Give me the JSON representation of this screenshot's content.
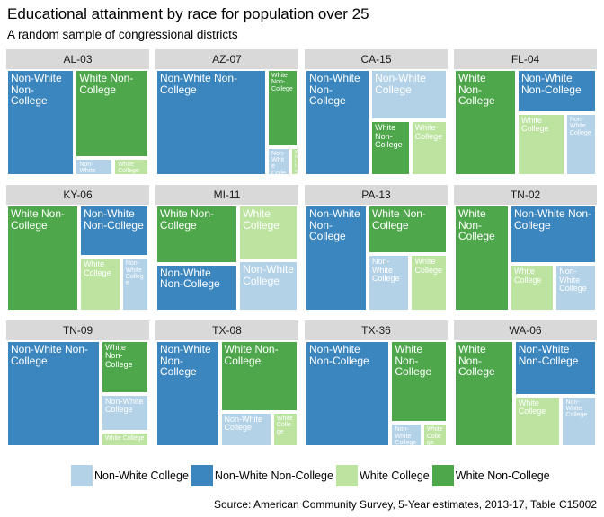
{
  "chart_data": {
    "type": "treemap",
    "title": "Educational attainment by race for population over 25",
    "subtitle": "A random sample of congressional districts",
    "caption": "Source: American Community Survey, 5-Year estimates, 2013-17, Table C15002",
    "categories": [
      "Non-White College",
      "Non-White Non-College",
      "White College",
      "White Non-College"
    ],
    "colors": {
      "Non-White College": "#b3d2e8",
      "Non-White Non-College": "#3c86c0",
      "White College": "#bde3a0",
      "White Non-College": "#4ea84b"
    },
    "legend_position": "bottom",
    "districts": [
      {
        "name": "AL-03",
        "values": {
          "Non-White College": 0.045,
          "Non-White Non-College": 0.48,
          "White College": 0.042,
          "White Non-College": 0.433
        }
      },
      {
        "name": "AZ-07",
        "values": {
          "Non-White College": 0.045,
          "Non-White Non-College": 0.78,
          "White College": 0.015,
          "White Non-College": 0.16
        }
      },
      {
        "name": "CA-15",
        "values": {
          "Non-White College": 0.26,
          "Non-White Non-College": 0.46,
          "White College": 0.135,
          "White Non-College": 0.145
        }
      },
      {
        "name": "FL-04",
        "values": {
          "Non-White College": 0.13,
          "Non-White Non-College": 0.23,
          "White College": 0.2,
          "White Non-College": 0.44
        }
      },
      {
        "name": "KY-06",
        "values": {
          "Non-White College": 0.1,
          "Non-White Non-College": 0.24,
          "White College": 0.15,
          "White Non-College": 0.51
        }
      },
      {
        "name": "MI-11",
        "values": {
          "Non-White College": 0.2,
          "Non-White Non-College": 0.26,
          "White College": 0.22,
          "White Non-College": 0.32
        }
      },
      {
        "name": "PA-13",
        "values": {
          "Non-White College": 0.16,
          "Non-White Non-College": 0.44,
          "White College": 0.14,
          "White Non-College": 0.26
        }
      },
      {
        "name": "TN-02",
        "values": {
          "Non-White College": 0.13,
          "Non-White Non-College": 0.34,
          "White College": 0.14,
          "White Non-College": 0.39
        }
      },
      {
        "name": "TN-09",
        "values": {
          "Non-White College": 0.12,
          "Non-White Non-College": 0.66,
          "White College": 0.05,
          "White Non-College": 0.17
        }
      },
      {
        "name": "TX-08",
        "values": {
          "Non-White College": 0.12,
          "Non-White Non-College": 0.45,
          "White College": 0.06,
          "White Non-College": 0.37
        }
      },
      {
        "name": "TX-36",
        "values": {
          "Non-White College": 0.05,
          "Non-White Non-College": 0.6,
          "White College": 0.04,
          "White Non-College": 0.31
        }
      },
      {
        "name": "WA-06",
        "values": {
          "Non-White College": 0.12,
          "Non-White Non-College": 0.3,
          "White College": 0.16,
          "White Non-College": 0.42
        }
      }
    ]
  }
}
